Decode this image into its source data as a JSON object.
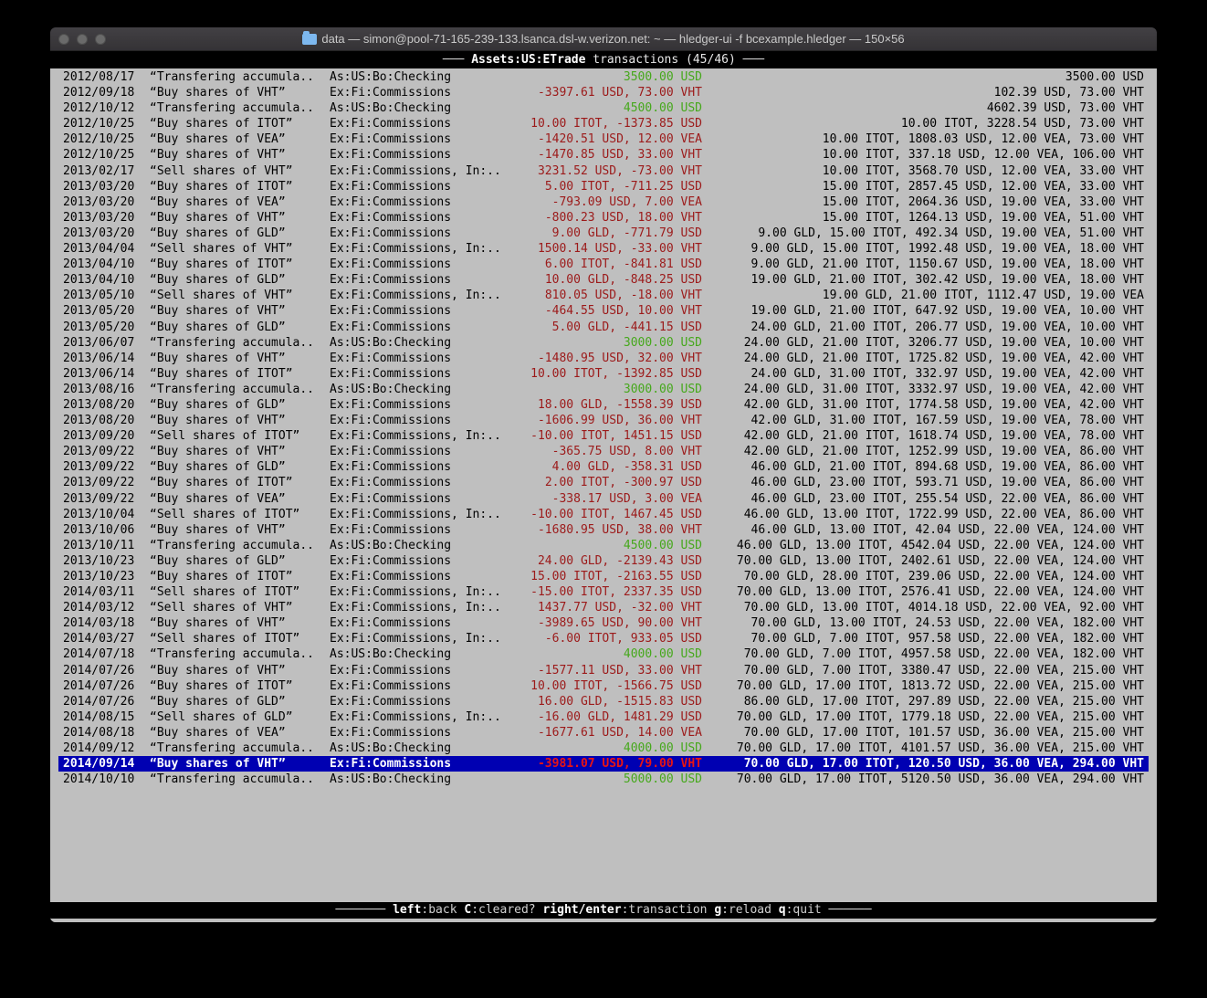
{
  "window": {
    "title": "data — simon@pool-71-165-239-133.lsanca.dsl-w.verizon.net: ~ — hledger-ui -f bcexample.hledger — 150×56"
  },
  "header": {
    "dash_left": "─── ",
    "account": "Assets:US:ETrade",
    "suffix": " transactions (45/46) ",
    "dash_right": "───"
  },
  "footer": {
    "dash_left": "─────── ",
    "dash_right": " ──────",
    "hints": [
      {
        "key": "left",
        "label": ":back"
      },
      {
        "key": "C",
        "label": ":cleared?"
      },
      {
        "key": "right/enter",
        "label": ":transaction"
      },
      {
        "key": "g",
        "label": ":reload"
      },
      {
        "key": "q",
        "label": ":quit"
      }
    ]
  },
  "colors": {
    "terminal_bg": "#bfbfbf",
    "bar_bg": "#000000",
    "negative_amount": "#9c1a1a",
    "positive_amount": "#46a81c",
    "selection_bg": "#0000b2",
    "selection_fg": "#ffffff",
    "selection_negative": "#e81414"
  },
  "table": {
    "selected_index": 44,
    "rows": [
      {
        "date": "2012/08/17",
        "description": "“Transfering accumula..",
        "accounts": "As:US:Bo:Checking",
        "change": "3500.00 USD",
        "change_sign": "pos",
        "balance": "3500.00 USD"
      },
      {
        "date": "2012/09/18",
        "description": "“Buy shares of VHT”",
        "accounts": "Ex:Fi:Commissions",
        "change": "-3397.61 USD, 73.00 VHT",
        "change_sign": "neg",
        "balance": "102.39 USD, 73.00 VHT"
      },
      {
        "date": "2012/10/12",
        "description": "“Transfering accumula..",
        "accounts": "As:US:Bo:Checking",
        "change": "4500.00 USD",
        "change_sign": "pos",
        "balance": "4602.39 USD, 73.00 VHT"
      },
      {
        "date": "2012/10/25",
        "description": "“Buy shares of ITOT”",
        "accounts": "Ex:Fi:Commissions",
        "change": "10.00 ITOT, -1373.85 USD",
        "change_sign": "neg",
        "balance": "10.00 ITOT, 3228.54 USD, 73.00 VHT"
      },
      {
        "date": "2012/10/25",
        "description": "“Buy shares of VEA”",
        "accounts": "Ex:Fi:Commissions",
        "change": "-1420.51 USD, 12.00 VEA",
        "change_sign": "neg",
        "balance": "10.00 ITOT, 1808.03 USD, 12.00 VEA, 73.00 VHT"
      },
      {
        "date": "2012/10/25",
        "description": "“Buy shares of VHT”",
        "accounts": "Ex:Fi:Commissions",
        "change": "-1470.85 USD, 33.00 VHT",
        "change_sign": "neg",
        "balance": "10.00 ITOT, 337.18 USD, 12.00 VEA, 106.00 VHT"
      },
      {
        "date": "2013/02/17",
        "description": "“Sell shares of VHT”",
        "accounts": "Ex:Fi:Commissions, In:..",
        "change": "3231.52 USD, -73.00 VHT",
        "change_sign": "neg",
        "balance": "10.00 ITOT, 3568.70 USD, 12.00 VEA, 33.00 VHT"
      },
      {
        "date": "2013/03/20",
        "description": "“Buy shares of ITOT”",
        "accounts": "Ex:Fi:Commissions",
        "change": "5.00 ITOT, -711.25 USD",
        "change_sign": "neg",
        "balance": "15.00 ITOT, 2857.45 USD, 12.00 VEA, 33.00 VHT"
      },
      {
        "date": "2013/03/20",
        "description": "“Buy shares of VEA”",
        "accounts": "Ex:Fi:Commissions",
        "change": "-793.09 USD, 7.00 VEA",
        "change_sign": "neg",
        "balance": "15.00 ITOT, 2064.36 USD, 19.00 VEA, 33.00 VHT"
      },
      {
        "date": "2013/03/20",
        "description": "“Buy shares of VHT”",
        "accounts": "Ex:Fi:Commissions",
        "change": "-800.23 USD, 18.00 VHT",
        "change_sign": "neg",
        "balance": "15.00 ITOT, 1264.13 USD, 19.00 VEA, 51.00 VHT"
      },
      {
        "date": "2013/03/20",
        "description": "“Buy shares of GLD”",
        "accounts": "Ex:Fi:Commissions",
        "change": "9.00 GLD, -771.79 USD",
        "change_sign": "neg",
        "balance": "9.00 GLD, 15.00 ITOT, 492.34 USD, 19.00 VEA, 51.00 VHT"
      },
      {
        "date": "2013/04/04",
        "description": "“Sell shares of VHT”",
        "accounts": "Ex:Fi:Commissions, In:..",
        "change": "1500.14 USD, -33.00 VHT",
        "change_sign": "neg",
        "balance": "9.00 GLD, 15.00 ITOT, 1992.48 USD, 19.00 VEA, 18.00 VHT"
      },
      {
        "date": "2013/04/10",
        "description": "“Buy shares of ITOT”",
        "accounts": "Ex:Fi:Commissions",
        "change": "6.00 ITOT, -841.81 USD",
        "change_sign": "neg",
        "balance": "9.00 GLD, 21.00 ITOT, 1150.67 USD, 19.00 VEA, 18.00 VHT"
      },
      {
        "date": "2013/04/10",
        "description": "“Buy shares of GLD”",
        "accounts": "Ex:Fi:Commissions",
        "change": "10.00 GLD, -848.25 USD",
        "change_sign": "neg",
        "balance": "19.00 GLD, 21.00 ITOT, 302.42 USD, 19.00 VEA, 18.00 VHT"
      },
      {
        "date": "2013/05/10",
        "description": "“Sell shares of VHT”",
        "accounts": "Ex:Fi:Commissions, In:..",
        "change": "810.05 USD, -18.00 VHT",
        "change_sign": "neg",
        "balance": "19.00 GLD, 21.00 ITOT, 1112.47 USD, 19.00 VEA"
      },
      {
        "date": "2013/05/20",
        "description": "“Buy shares of VHT”",
        "accounts": "Ex:Fi:Commissions",
        "change": "-464.55 USD, 10.00 VHT",
        "change_sign": "neg",
        "balance": "19.00 GLD, 21.00 ITOT, 647.92 USD, 19.00 VEA, 10.00 VHT"
      },
      {
        "date": "2013/05/20",
        "description": "“Buy shares of GLD”",
        "accounts": "Ex:Fi:Commissions",
        "change": "5.00 GLD, -441.15 USD",
        "change_sign": "neg",
        "balance": "24.00 GLD, 21.00 ITOT, 206.77 USD, 19.00 VEA, 10.00 VHT"
      },
      {
        "date": "2013/06/07",
        "description": "“Transfering accumula..",
        "accounts": "As:US:Bo:Checking",
        "change": "3000.00 USD",
        "change_sign": "pos",
        "balance": "24.00 GLD, 21.00 ITOT, 3206.77 USD, 19.00 VEA, 10.00 VHT"
      },
      {
        "date": "2013/06/14",
        "description": "“Buy shares of VHT”",
        "accounts": "Ex:Fi:Commissions",
        "change": "-1480.95 USD, 32.00 VHT",
        "change_sign": "neg",
        "balance": "24.00 GLD, 21.00 ITOT, 1725.82 USD, 19.00 VEA, 42.00 VHT"
      },
      {
        "date": "2013/06/14",
        "description": "“Buy shares of ITOT”",
        "accounts": "Ex:Fi:Commissions",
        "change": "10.00 ITOT, -1392.85 USD",
        "change_sign": "neg",
        "balance": "24.00 GLD, 31.00 ITOT, 332.97 USD, 19.00 VEA, 42.00 VHT"
      },
      {
        "date": "2013/08/16",
        "description": "“Transfering accumula..",
        "accounts": "As:US:Bo:Checking",
        "change": "3000.00 USD",
        "change_sign": "pos",
        "balance": "24.00 GLD, 31.00 ITOT, 3332.97 USD, 19.00 VEA, 42.00 VHT"
      },
      {
        "date": "2013/08/20",
        "description": "“Buy shares of GLD”",
        "accounts": "Ex:Fi:Commissions",
        "change": "18.00 GLD, -1558.39 USD",
        "change_sign": "neg",
        "balance": "42.00 GLD, 31.00 ITOT, 1774.58 USD, 19.00 VEA, 42.00 VHT"
      },
      {
        "date": "2013/08/20",
        "description": "“Buy shares of VHT”",
        "accounts": "Ex:Fi:Commissions",
        "change": "-1606.99 USD, 36.00 VHT",
        "change_sign": "neg",
        "balance": "42.00 GLD, 31.00 ITOT, 167.59 USD, 19.00 VEA, 78.00 VHT"
      },
      {
        "date": "2013/09/20",
        "description": "“Sell shares of ITOT”",
        "accounts": "Ex:Fi:Commissions, In:..",
        "change": "-10.00 ITOT, 1451.15 USD",
        "change_sign": "neg",
        "balance": "42.00 GLD, 21.00 ITOT, 1618.74 USD, 19.00 VEA, 78.00 VHT"
      },
      {
        "date": "2013/09/22",
        "description": "“Buy shares of VHT”",
        "accounts": "Ex:Fi:Commissions",
        "change": "-365.75 USD, 8.00 VHT",
        "change_sign": "neg",
        "balance": "42.00 GLD, 21.00 ITOT, 1252.99 USD, 19.00 VEA, 86.00 VHT"
      },
      {
        "date": "2013/09/22",
        "description": "“Buy shares of GLD”",
        "accounts": "Ex:Fi:Commissions",
        "change": "4.00 GLD, -358.31 USD",
        "change_sign": "neg",
        "balance": "46.00 GLD, 21.00 ITOT, 894.68 USD, 19.00 VEA, 86.00 VHT"
      },
      {
        "date": "2013/09/22",
        "description": "“Buy shares of ITOT”",
        "accounts": "Ex:Fi:Commissions",
        "change": "2.00 ITOT, -300.97 USD",
        "change_sign": "neg",
        "balance": "46.00 GLD, 23.00 ITOT, 593.71 USD, 19.00 VEA, 86.00 VHT"
      },
      {
        "date": "2013/09/22",
        "description": "“Buy shares of VEA”",
        "accounts": "Ex:Fi:Commissions",
        "change": "-338.17 USD, 3.00 VEA",
        "change_sign": "neg",
        "balance": "46.00 GLD, 23.00 ITOT, 255.54 USD, 22.00 VEA, 86.00 VHT"
      },
      {
        "date": "2013/10/04",
        "description": "“Sell shares of ITOT”",
        "accounts": "Ex:Fi:Commissions, In:..",
        "change": "-10.00 ITOT, 1467.45 USD",
        "change_sign": "neg",
        "balance": "46.00 GLD, 13.00 ITOT, 1722.99 USD, 22.00 VEA, 86.00 VHT"
      },
      {
        "date": "2013/10/06",
        "description": "“Buy shares of VHT”",
        "accounts": "Ex:Fi:Commissions",
        "change": "-1680.95 USD, 38.00 VHT",
        "change_sign": "neg",
        "balance": "46.00 GLD, 13.00 ITOT, 42.04 USD, 22.00 VEA, 124.00 VHT"
      },
      {
        "date": "2013/10/11",
        "description": "“Transfering accumula..",
        "accounts": "As:US:Bo:Checking",
        "change": "4500.00 USD",
        "change_sign": "pos",
        "balance": "46.00 GLD, 13.00 ITOT, 4542.04 USD, 22.00 VEA, 124.00 VHT"
      },
      {
        "date": "2013/10/23",
        "description": "“Buy shares of GLD”",
        "accounts": "Ex:Fi:Commissions",
        "change": "24.00 GLD, -2139.43 USD",
        "change_sign": "neg",
        "balance": "70.00 GLD, 13.00 ITOT, 2402.61 USD, 22.00 VEA, 124.00 VHT"
      },
      {
        "date": "2013/10/23",
        "description": "“Buy shares of ITOT”",
        "accounts": "Ex:Fi:Commissions",
        "change": "15.00 ITOT, -2163.55 USD",
        "change_sign": "neg",
        "balance": "70.00 GLD, 28.00 ITOT, 239.06 USD, 22.00 VEA, 124.00 VHT"
      },
      {
        "date": "2014/03/11",
        "description": "“Sell shares of ITOT”",
        "accounts": "Ex:Fi:Commissions, In:..",
        "change": "-15.00 ITOT, 2337.35 USD",
        "change_sign": "neg",
        "balance": "70.00 GLD, 13.00 ITOT, 2576.41 USD, 22.00 VEA, 124.00 VHT"
      },
      {
        "date": "2014/03/12",
        "description": "“Sell shares of VHT”",
        "accounts": "Ex:Fi:Commissions, In:..",
        "change": "1437.77 USD, -32.00 VHT",
        "change_sign": "neg",
        "balance": "70.00 GLD, 13.00 ITOT, 4014.18 USD, 22.00 VEA, 92.00 VHT"
      },
      {
        "date": "2014/03/18",
        "description": "“Buy shares of VHT”",
        "accounts": "Ex:Fi:Commissions",
        "change": "-3989.65 USD, 90.00 VHT",
        "change_sign": "neg",
        "balance": "70.00 GLD, 13.00 ITOT, 24.53 USD, 22.00 VEA, 182.00 VHT"
      },
      {
        "date": "2014/03/27",
        "description": "“Sell shares of ITOT”",
        "accounts": "Ex:Fi:Commissions, In:..",
        "change": "-6.00 ITOT, 933.05 USD",
        "change_sign": "neg",
        "balance": "70.00 GLD, 7.00 ITOT, 957.58 USD, 22.00 VEA, 182.00 VHT"
      },
      {
        "date": "2014/07/18",
        "description": "“Transfering accumula..",
        "accounts": "As:US:Bo:Checking",
        "change": "4000.00 USD",
        "change_sign": "pos",
        "balance": "70.00 GLD, 7.00 ITOT, 4957.58 USD, 22.00 VEA, 182.00 VHT"
      },
      {
        "date": "2014/07/26",
        "description": "“Buy shares of VHT”",
        "accounts": "Ex:Fi:Commissions",
        "change": "-1577.11 USD, 33.00 VHT",
        "change_sign": "neg",
        "balance": "70.00 GLD, 7.00 ITOT, 3380.47 USD, 22.00 VEA, 215.00 VHT"
      },
      {
        "date": "2014/07/26",
        "description": "“Buy shares of ITOT”",
        "accounts": "Ex:Fi:Commissions",
        "change": "10.00 ITOT, -1566.75 USD",
        "change_sign": "neg",
        "balance": "70.00 GLD, 17.00 ITOT, 1813.72 USD, 22.00 VEA, 215.00 VHT"
      },
      {
        "date": "2014/07/26",
        "description": "“Buy shares of GLD”",
        "accounts": "Ex:Fi:Commissions",
        "change": "16.00 GLD, -1515.83 USD",
        "change_sign": "neg",
        "balance": "86.00 GLD, 17.00 ITOT, 297.89 USD, 22.00 VEA, 215.00 VHT"
      },
      {
        "date": "2014/08/15",
        "description": "“Sell shares of GLD”",
        "accounts": "Ex:Fi:Commissions, In:..",
        "change": "-16.00 GLD, 1481.29 USD",
        "change_sign": "neg",
        "balance": "70.00 GLD, 17.00 ITOT, 1779.18 USD, 22.00 VEA, 215.00 VHT"
      },
      {
        "date": "2014/08/18",
        "description": "“Buy shares of VEA”",
        "accounts": "Ex:Fi:Commissions",
        "change": "-1677.61 USD, 14.00 VEA",
        "change_sign": "neg",
        "balance": "70.00 GLD, 17.00 ITOT, 101.57 USD, 36.00 VEA, 215.00 VHT"
      },
      {
        "date": "2014/09/12",
        "description": "“Transfering accumula..",
        "accounts": "As:US:Bo:Checking",
        "change": "4000.00 USD",
        "change_sign": "pos",
        "balance": "70.00 GLD, 17.00 ITOT, 4101.57 USD, 36.00 VEA, 215.00 VHT"
      },
      {
        "date": "2014/09/14",
        "description": "“Buy shares of VHT”",
        "accounts": "Ex:Fi:Commissions",
        "change": "-3981.07 USD, 79.00 VHT",
        "change_sign": "neg",
        "balance": "70.00 GLD, 17.00 ITOT, 120.50 USD, 36.00 VEA, 294.00 VHT"
      },
      {
        "date": "2014/10/10",
        "description": "“Transfering accumula..",
        "accounts": "As:US:Bo:Checking",
        "change": "5000.00 USD",
        "change_sign": "pos",
        "balance": "70.00 GLD, 17.00 ITOT, 5120.50 USD, 36.00 VEA, 294.00 VHT"
      }
    ]
  }
}
